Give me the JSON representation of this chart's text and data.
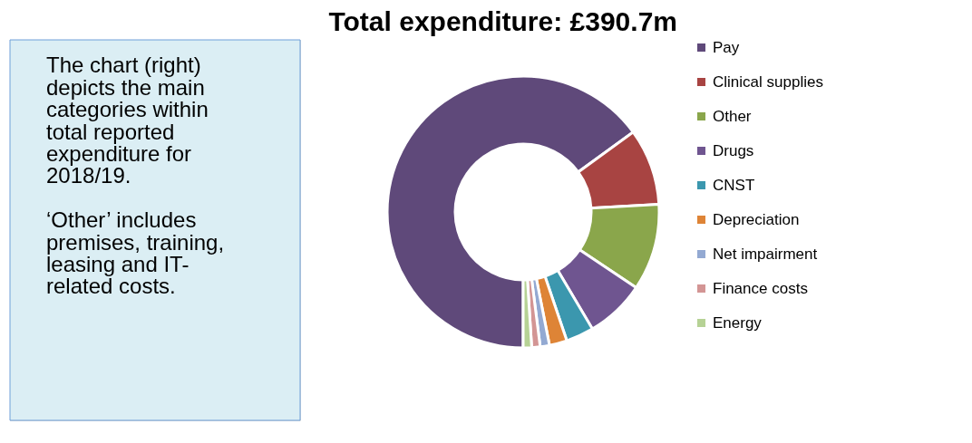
{
  "chart_data": {
    "type": "donut",
    "title": "Total expenditure: £390.7m",
    "categories": [
      "Pay",
      "Clinical supplies",
      "Other",
      "Drugs",
      "CNST",
      "Depreciation",
      "Net impairment",
      "Finance costs",
      "Energy"
    ],
    "values": [
      65,
      9.1,
      10.3,
      7.1,
      3.3,
      2.1,
      1.1,
      1.0,
      1.0
    ],
    "colors": [
      "#5f497a",
      "#a84442",
      "#8aa64b",
      "#6f5590",
      "#3b97ae",
      "#de8436",
      "#93a9d2",
      "#d39594",
      "#b6d295"
    ],
    "legend": "right",
    "annotations": [
      "The chart (right) depicts the main categories within total reported expenditure for 2018/19.",
      "‘Other’ includes premises, training, leasing and IT-related costs."
    ]
  }
}
